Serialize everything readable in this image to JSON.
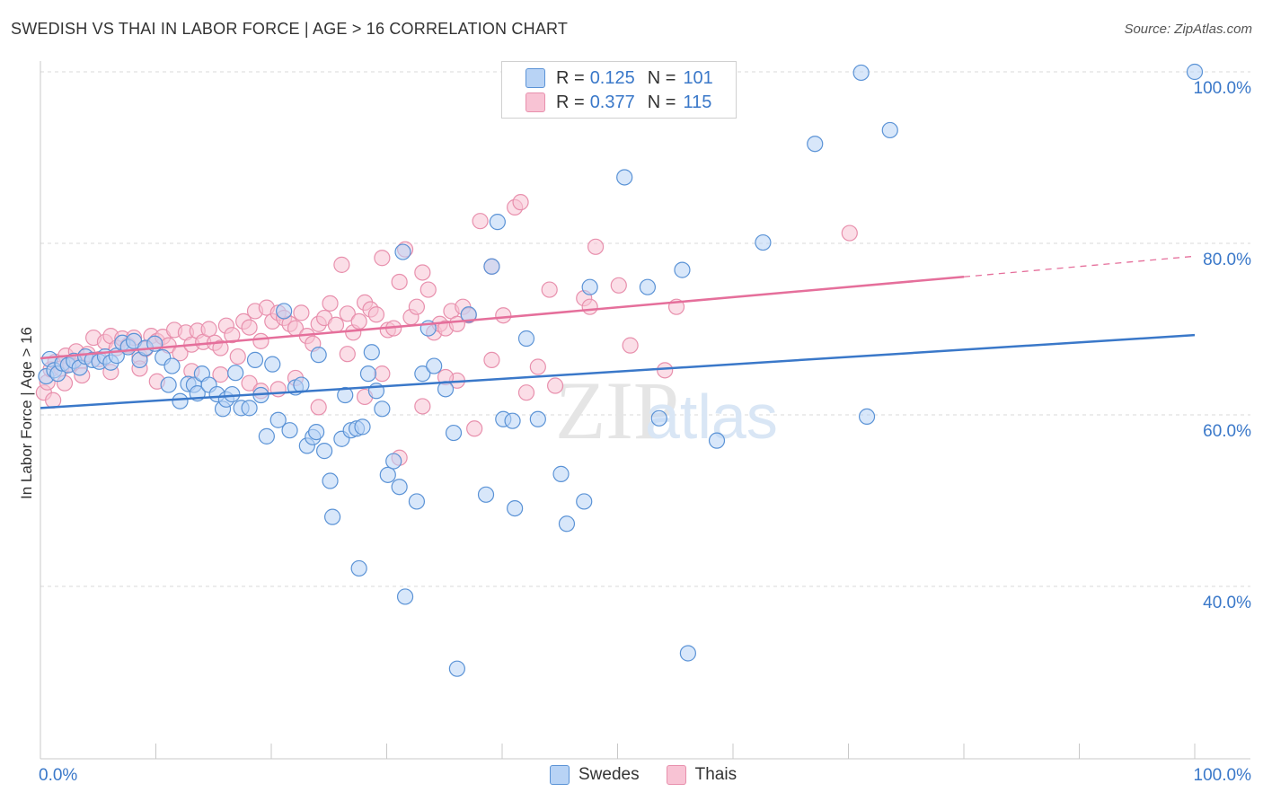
{
  "header": {
    "title": "SWEDISH VS THAI IN LABOR FORCE | AGE > 16 CORRELATION CHART",
    "source": "Source: ZipAtlas.com"
  },
  "legend": {
    "rows": [
      {
        "r_label": "R =",
        "r_value": "0.125",
        "n_label": "N =",
        "n_value": "101"
      },
      {
        "r_label": "R =",
        "r_value": "0.377",
        "n_label": "N =",
        "n_value": "115"
      }
    ]
  },
  "watermark": {
    "zip": "ZIP",
    "atlas": "atlas"
  },
  "colors": {
    "blue_fill": "#b8d3f5",
    "blue_stroke": "#5b93d6",
    "blue_line": "#3a78c9",
    "pink_fill": "#f8c3d4",
    "pink_stroke": "#e890ad",
    "pink_line": "#e56f9b",
    "tick_label": "#3a78c9",
    "grid": "#d8d8d8"
  },
  "chart_data": {
    "type": "scatter",
    "xlabel": "",
    "ylabel": "In Labor Force | Age > 16",
    "xlim": [
      0,
      100
    ],
    "ylim": [
      22,
      103
    ],
    "x_tick_labels": [
      "0.0%",
      "100.0%"
    ],
    "y_ticks": [
      40,
      60,
      80,
      100
    ],
    "y_tick_labels": [
      "40.0%",
      "60.0%",
      "80.0%",
      "100.0%"
    ],
    "grid": true,
    "legend_position": "top-center",
    "series": [
      {
        "name": "Swedes",
        "color": "#5b93d6",
        "trend": {
          "x0": 0,
          "y0": 60.8,
          "x1": 100,
          "y1": 69.3,
          "dashed_from": null
        },
        "points": [
          [
            0.5,
            64.5
          ],
          [
            0.8,
            66.5
          ],
          [
            1.2,
            65.2
          ],
          [
            1.5,
            64.8
          ],
          [
            1.9,
            66
          ],
          [
            2.4,
            65.8
          ],
          [
            2.9,
            66.3
          ],
          [
            3.4,
            65.5
          ],
          [
            3.9,
            66.8
          ],
          [
            4.5,
            66.4
          ],
          [
            5.1,
            66.2
          ],
          [
            5.6,
            66.8
          ],
          [
            6.1,
            66.1
          ],
          [
            6.6,
            66.9
          ],
          [
            7.1,
            68.4
          ],
          [
            7.6,
            67.9
          ],
          [
            8.1,
            68.6
          ],
          [
            8.6,
            66.4
          ],
          [
            9.1,
            67.8
          ],
          [
            9.9,
            68.3
          ],
          [
            10.6,
            66.7
          ],
          [
            11.1,
            63.5
          ],
          [
            11.4,
            65.7
          ],
          [
            12.1,
            61.6
          ],
          [
            12.8,
            63.6
          ],
          [
            13.3,
            63.5
          ],
          [
            13.6,
            62.5
          ],
          [
            14.0,
            64.8
          ],
          [
            14.6,
            63.5
          ],
          [
            15.3,
            62.4
          ],
          [
            15.8,
            60.7
          ],
          [
            16.1,
            61.8
          ],
          [
            16.6,
            62.4
          ],
          [
            16.9,
            64.9
          ],
          [
            17.4,
            60.8
          ],
          [
            18.1,
            60.8
          ],
          [
            18.6,
            66.4
          ],
          [
            19.1,
            62.3
          ],
          [
            19.6,
            57.5
          ],
          [
            20.1,
            65.9
          ],
          [
            20.6,
            59.4
          ],
          [
            21.1,
            72.1
          ],
          [
            21.6,
            58.2
          ],
          [
            22.1,
            63.2
          ],
          [
            22.6,
            63.5
          ],
          [
            23.1,
            56.4
          ],
          [
            23.6,
            57.4
          ],
          [
            23.9,
            58.0
          ],
          [
            24.1,
            67.0
          ],
          [
            24.6,
            55.8
          ],
          [
            25.1,
            52.3
          ],
          [
            25.3,
            48.1
          ],
          [
            26.1,
            57.2
          ],
          [
            26.4,
            62.3
          ],
          [
            26.9,
            58.2
          ],
          [
            27.4,
            58.4
          ],
          [
            27.6,
            42.1
          ],
          [
            27.9,
            58.6
          ],
          [
            28.4,
            64.8
          ],
          [
            28.7,
            67.3
          ],
          [
            29.1,
            62.8
          ],
          [
            29.6,
            60.7
          ],
          [
            30.1,
            53.0
          ],
          [
            30.6,
            54.6
          ],
          [
            31.1,
            51.6
          ],
          [
            31.4,
            79.0
          ],
          [
            31.6,
            38.8
          ],
          [
            32.6,
            49.9
          ],
          [
            33.1,
            64.8
          ],
          [
            33.6,
            70.1
          ],
          [
            34.1,
            65.7
          ],
          [
            35.1,
            63.0
          ],
          [
            35.8,
            57.9
          ],
          [
            36.1,
            30.4
          ],
          [
            37.1,
            71.7
          ],
          [
            38.6,
            50.7
          ],
          [
            39.1,
            77.3
          ],
          [
            39.6,
            82.5
          ],
          [
            40.1,
            59.5
          ],
          [
            40.9,
            59.3
          ],
          [
            41.1,
            49.1
          ],
          [
            42.1,
            68.9
          ],
          [
            43.1,
            59.5
          ],
          [
            45.1,
            53.1
          ],
          [
            45.6,
            47.3
          ],
          [
            47.1,
            49.9
          ],
          [
            47.6,
            74.9
          ],
          [
            50.6,
            87.7
          ],
          [
            52.6,
            74.9
          ],
          [
            53.6,
            59.6
          ],
          [
            55.6,
            76.9
          ],
          [
            56.1,
            32.2
          ],
          [
            58.6,
            57.0
          ],
          [
            62.6,
            80.1
          ],
          [
            67.1,
            91.6
          ],
          [
            71.1,
            99.9
          ],
          [
            71.6,
            59.8
          ],
          [
            73.6,
            93.2
          ],
          [
            100.0,
            100.0
          ]
        ]
      },
      {
        "name": "Thais",
        "color": "#e890ad",
        "trend": {
          "x0": 0,
          "y0": 66.6,
          "x1": 80,
          "y1": 76.1,
          "dashed_from": 80,
          "dashed_x1": 100,
          "dashed_y1": 78.5
        },
        "points": [
          [
            0.3,
            62.6
          ],
          [
            0.6,
            63.8
          ],
          [
            0.9,
            65.3
          ],
          [
            1.3,
            66.2
          ],
          [
            1.8,
            65.4
          ],
          [
            2.2,
            66.9
          ],
          [
            2.6,
            65.9
          ],
          [
            3.1,
            67.4
          ],
          [
            3.6,
            66.3
          ],
          [
            4.1,
            67.1
          ],
          [
            4.6,
            69.0
          ],
          [
            5.1,
            66.5
          ],
          [
            5.6,
            68.5
          ],
          [
            6.1,
            69.2
          ],
          [
            6.6,
            67.8
          ],
          [
            7.1,
            68.9
          ],
          [
            7.6,
            68.1
          ],
          [
            8.1,
            69.0
          ],
          [
            8.6,
            66.8
          ],
          [
            9.1,
            67.7
          ],
          [
            9.6,
            69.2
          ],
          [
            10.1,
            68.6
          ],
          [
            10.6,
            69.1
          ],
          [
            11.1,
            68.1
          ],
          [
            11.6,
            69.9
          ],
          [
            12.1,
            67.2
          ],
          [
            12.6,
            69.6
          ],
          [
            13.1,
            68.2
          ],
          [
            13.6,
            69.8
          ],
          [
            14.1,
            68.5
          ],
          [
            14.6,
            70.0
          ],
          [
            15.1,
            68.4
          ],
          [
            15.6,
            67.8
          ],
          [
            16.1,
            70.4
          ],
          [
            16.6,
            69.3
          ],
          [
            17.1,
            66.8
          ],
          [
            17.6,
            70.9
          ],
          [
            18.1,
            70.2
          ],
          [
            18.6,
            72.1
          ],
          [
            19.1,
            68.6
          ],
          [
            19.6,
            72.5
          ],
          [
            20.1,
            70.9
          ],
          [
            20.6,
            71.9
          ],
          [
            21.1,
            71.3
          ],
          [
            21.6,
            70.6
          ],
          [
            22.1,
            70.1
          ],
          [
            22.6,
            71.9
          ],
          [
            23.1,
            69.2
          ],
          [
            23.6,
            68.3
          ],
          [
            24.1,
            70.6
          ],
          [
            24.6,
            71.3
          ],
          [
            25.1,
            73.0
          ],
          [
            25.6,
            70.5
          ],
          [
            26.1,
            77.5
          ],
          [
            26.6,
            71.8
          ],
          [
            27.1,
            69.6
          ],
          [
            27.6,
            70.9
          ],
          [
            28.1,
            73.1
          ],
          [
            28.6,
            72.3
          ],
          [
            29.1,
            71.7
          ],
          [
            29.6,
            78.3
          ],
          [
            30.1,
            69.9
          ],
          [
            30.6,
            70.1
          ],
          [
            31.1,
            75.5
          ],
          [
            31.6,
            79.3
          ],
          [
            32.1,
            71.4
          ],
          [
            32.6,
            72.6
          ],
          [
            33.1,
            76.6
          ],
          [
            33.6,
            74.6
          ],
          [
            34.1,
            69.6
          ],
          [
            34.6,
            70.6
          ],
          [
            35.1,
            70.1
          ],
          [
            35.6,
            72.1
          ],
          [
            36.1,
            70.6
          ],
          [
            36.6,
            72.6
          ],
          [
            37.1,
            71.6
          ],
          [
            38.1,
            82.6
          ],
          [
            39.1,
            77.3
          ],
          [
            40.1,
            71.6
          ],
          [
            41.1,
            84.2
          ],
          [
            41.6,
            84.8
          ],
          [
            43.1,
            65.6
          ],
          [
            44.1,
            74.6
          ],
          [
            47.1,
            73.6
          ],
          [
            47.6,
            72.6
          ],
          [
            48.1,
            79.6
          ],
          [
            50.1,
            75.1
          ],
          [
            51.1,
            68.1
          ],
          [
            54.1,
            65.2
          ],
          [
            55.1,
            72.6
          ],
          [
            70.1,
            81.2
          ],
          [
            10.1,
            63.9
          ],
          [
            6.1,
            65.0
          ],
          [
            3.6,
            64.6
          ],
          [
            2.1,
            63.7
          ],
          [
            1.1,
            61.7
          ],
          [
            24.1,
            60.9
          ],
          [
            28.1,
            62.1
          ],
          [
            33.1,
            61.0
          ],
          [
            36.1,
            64.0
          ],
          [
            39.1,
            66.4
          ],
          [
            42.1,
            62.6
          ],
          [
            44.6,
            63.4
          ],
          [
            15.6,
            64.7
          ],
          [
            18.1,
            63.7
          ],
          [
            20.6,
            63.0
          ],
          [
            31.1,
            55.0
          ],
          [
            37.6,
            58.4
          ],
          [
            29.6,
            64.8
          ],
          [
            26.6,
            67.1
          ],
          [
            35.1,
            64.4
          ],
          [
            13.1,
            65.1
          ],
          [
            8.6,
            65.4
          ],
          [
            22.1,
            64.3
          ],
          [
            19.1,
            62.8
          ]
        ]
      }
    ]
  }
}
